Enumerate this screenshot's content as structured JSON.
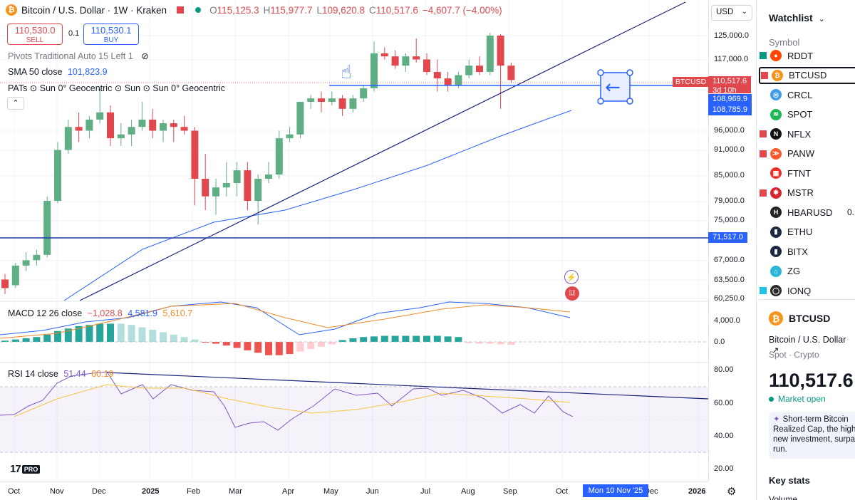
{
  "header": {
    "symbol_title": "Bitcoin / U.S. Dollar · 1W · Kraken",
    "ohlc": {
      "o": "115,125.3",
      "h": "115,977.7",
      "l": "109,620.8",
      "c": "110,517.6",
      "change": "−4,607.7 (−4.00%)"
    }
  },
  "trade": {
    "sell_price": "110,530.0",
    "sell_label": "SELL",
    "spread": "0.1",
    "buy_price": "110,530.1",
    "buy_label": "BUY"
  },
  "indicators": {
    "pivots": "Pivots Traditional Auto 15 Left 1",
    "sma_label": "SMA 50 close",
    "sma_value": "101,823.9",
    "pats": "PATs ⊙ Sun 0° Geocentric ⊙ Sun ⊙ Sun 0° Geocentric",
    "macd_label": "MACD 12 26 close",
    "macd_hist": "−1,028.8",
    "macd_line": "4,581.9",
    "macd_signal": "5,610.7",
    "rsi_label": "RSI 14 close",
    "rsi_value": "51.44",
    "rsi_ma": "60.19"
  },
  "price_axis": {
    "currency": "USD",
    "ticks": [
      "125,000.0",
      "117,000.0",
      "96,000.0",
      "91,000.0",
      "85,000.0",
      "79,000.0",
      "75,000.0",
      "67,000.0",
      "63,500.0",
      "60,250.0"
    ],
    "macd_ticks": [
      "4,000.0",
      "0.0"
    ],
    "rsi_ticks": [
      "80.00",
      "60.00",
      "40.00",
      "20.00"
    ],
    "labels": {
      "last": "110,517.6",
      "countdown": "3d 10h",
      "level1": "108,969.9",
      "level2": "108,785.9",
      "hline": "71,517.0",
      "btcusd_tag": "BTCUSD"
    }
  },
  "time_axis": {
    "ticks": [
      "Oct",
      "Nov",
      "Dec",
      "2025",
      "Feb",
      "Mar",
      "Apr",
      "May",
      "Jun",
      "Jul",
      "Aug",
      "Sep",
      "Oct",
      "Dec",
      "2026"
    ],
    "crosshair_date": "Mon 10 Nov '25"
  },
  "branding": {
    "logo": "17",
    "pro": "PRO"
  },
  "chart_data": {
    "type": "candlestick",
    "candles": [
      [
        63500,
        64500,
        61000,
        62000
      ],
      [
        62500,
        66500,
        62000,
        66000
      ],
      [
        66000,
        68500,
        65000,
        67000
      ],
      [
        67000,
        69000,
        66000,
        68000
      ],
      [
        68000,
        80000,
        67500,
        79000
      ],
      [
        79000,
        93000,
        78500,
        91000
      ],
      [
        91000,
        99000,
        90000,
        97000
      ],
      [
        97000,
        101000,
        93000,
        96000
      ],
      [
        96000,
        100000,
        94000,
        99000
      ],
      [
        99000,
        108000,
        98000,
        101000
      ],
      [
        101000,
        103000,
        92000,
        94000
      ],
      [
        94000,
        98000,
        92000,
        95000
      ],
      [
        95000,
        99000,
        92000,
        97000
      ],
      [
        97000,
        104000,
        96000,
        99000
      ],
      [
        99000,
        102000,
        94000,
        96000
      ],
      [
        96000,
        99000,
        93000,
        98000
      ],
      [
        98000,
        99000,
        93000,
        97000
      ],
      [
        97000,
        100000,
        95000,
        96000
      ],
      [
        96000,
        97000,
        78000,
        84000
      ],
      [
        84000,
        90000,
        77000,
        80000
      ],
      [
        80000,
        84000,
        76000,
        82000
      ],
      [
        82000,
        88000,
        80000,
        83000
      ],
      [
        83000,
        88000,
        80000,
        86000
      ],
      [
        86000,
        88000,
        77000,
        79000
      ],
      [
        79000,
        85000,
        74000,
        84000
      ],
      [
        84000,
        88000,
        83000,
        85000
      ],
      [
        85000,
        96000,
        84000,
        94000
      ],
      [
        94000,
        97000,
        93000,
        95000
      ],
      [
        95000,
        104000,
        94000,
        104000
      ],
      [
        104000,
        106000,
        102000,
        105000
      ],
      [
        105000,
        107000,
        101000,
        104000
      ],
      [
        104000,
        107000,
        103000,
        105000
      ],
      [
        105000,
        106000,
        100000,
        102000
      ],
      [
        102000,
        106000,
        101000,
        105000
      ],
      [
        105000,
        109000,
        104000,
        108000
      ],
      [
        108000,
        123000,
        107000,
        119000
      ],
      [
        119000,
        121000,
        117000,
        118000
      ],
      [
        118000,
        120000,
        114000,
        115000
      ],
      [
        115000,
        119000,
        113000,
        118000
      ],
      [
        118000,
        124000,
        116000,
        117000
      ],
      [
        117000,
        119000,
        112000,
        113000
      ],
      [
        113000,
        117000,
        107000,
        111000
      ],
      [
        111000,
        113000,
        107000,
        109000
      ],
      [
        109000,
        113000,
        108000,
        112000
      ],
      [
        112000,
        117000,
        111000,
        115000
      ],
      [
        115000,
        118000,
        112000,
        113000
      ],
      [
        113000,
        126000,
        112000,
        125000
      ],
      [
        125000,
        125500,
        102000,
        115000
      ],
      [
        115000,
        116000,
        109600,
        110500
      ]
    ],
    "sma50": [
      100000,
      101823.9
    ],
    "horizontal_lines": [
      108969.9,
      71517.0
    ],
    "macd": {
      "line": 4581.9,
      "signal": 5610.7,
      "histogram": -1028.8
    },
    "rsi": {
      "value": 51.44,
      "ma": 60.19,
      "bands": [
        70,
        30
      ]
    }
  },
  "sidebar": {
    "title": "Watchlist",
    "column": "Symbol",
    "items": [
      {
        "symbol": "RDDT",
        "flag": "#089981",
        "icon_color": "#ff4500",
        "icon": "reddit-icon",
        "glyph": "●"
      },
      {
        "symbol": "BTCUSD",
        "flag": "#e0484d",
        "icon_color": "#f7931a",
        "icon": "bitcoin-icon",
        "glyph": "₿",
        "selected": true
      },
      {
        "symbol": "CRCL",
        "flag": "",
        "icon_color": "#3d9be9",
        "icon": "circle-icon",
        "glyph": "◎"
      },
      {
        "symbol": "SPOT",
        "flag": "",
        "icon_color": "#1db954",
        "icon": "spotify-icon",
        "glyph": "≋"
      },
      {
        "symbol": "NFLX",
        "flag": "#e0484d",
        "icon_color": "#111111",
        "icon": "netflix-icon",
        "glyph": "N"
      },
      {
        "symbol": "PANW",
        "flag": "#e0484d",
        "icon_color": "#fa582d",
        "icon": "paloalto-icon",
        "glyph": "≫"
      },
      {
        "symbol": "FTNT",
        "flag": "",
        "icon_color": "#ee3124",
        "icon": "fortinet-icon",
        "glyph": "▦"
      },
      {
        "symbol": "MSTR",
        "flag": "#e0484d",
        "icon_color": "#d9232e",
        "icon": "strategy-icon",
        "glyph": "✱"
      },
      {
        "symbol": "HBARUSD",
        "flag": "",
        "icon_color": "#222222",
        "icon": "hbar-icon",
        "glyph": "H",
        "extra": "0."
      },
      {
        "symbol": "ETHU",
        "flag": "",
        "icon_color": "#1b2a41",
        "icon": "ethu-icon",
        "glyph": "▮"
      },
      {
        "symbol": "BITX",
        "flag": "",
        "icon_color": "#1b2a41",
        "icon": "bitx-icon",
        "glyph": "▮"
      },
      {
        "symbol": "ZG",
        "flag": "",
        "icon_color": "#2ab6d9",
        "icon": "zillow-icon",
        "glyph": "⌂"
      },
      {
        "symbol": "IONQ",
        "flag": "#22c1e4",
        "icon_color": "#2a2a2a",
        "icon": "ionq-icon",
        "glyph": "◯"
      }
    ],
    "detail": {
      "symbol": "BTCUSD",
      "name": "Bitcoin / U.S. Dollar",
      "category": "Spot · Crypto",
      "price": "110,517.6",
      "price_display": "110,517.6",
      "status": "Market open",
      "news": "Short-term Bitcoin Realized Cap, the high new investment, surpa run.",
      "keystats": "Key stats",
      "volume": "Volume"
    }
  }
}
